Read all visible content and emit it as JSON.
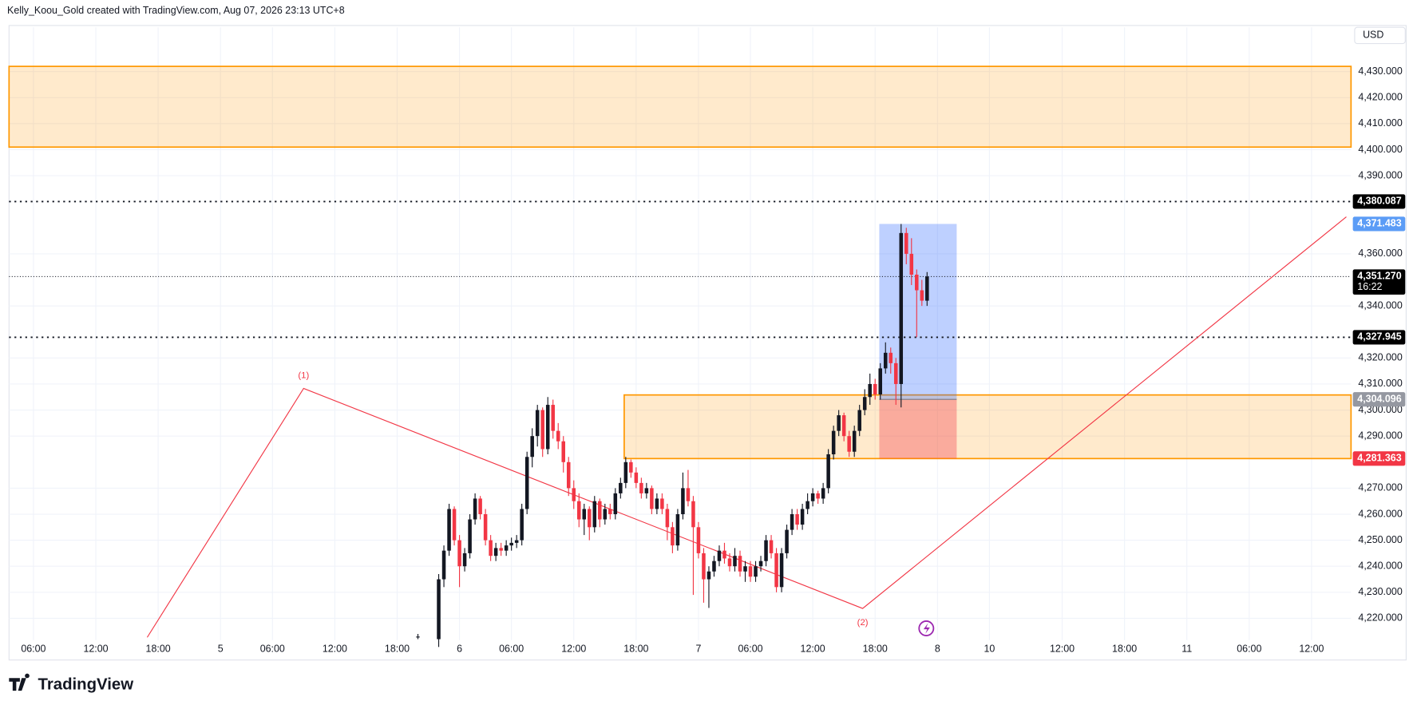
{
  "header": "Kelly_Koou_Gold created with TradingView.com, Aug 07, 2026 23:13 UTC+8",
  "brand": "TradingView",
  "chart_data": {
    "type": "candlestick",
    "currency": "USD",
    "up_color": "#131722",
    "down_color": "#f23645",
    "grid": true,
    "xlim": [
      -4.7,
      253.6
    ],
    "ylim": [
      4204,
      4447
    ],
    "xticks": [
      {
        "value": 0,
        "label": "06:00"
      },
      {
        "value": 12,
        "label": "12:00"
      },
      {
        "value": 24,
        "label": "18:00"
      },
      {
        "value": 36,
        "label": "5"
      },
      {
        "value": 46,
        "label": "06:00"
      },
      {
        "value": 58,
        "label": "12:00"
      },
      {
        "value": 70,
        "label": "18:00"
      },
      {
        "value": 82,
        "label": "6"
      },
      {
        "value": 92,
        "label": "06:00"
      },
      {
        "value": 104,
        "label": "12:00"
      },
      {
        "value": 116,
        "label": "18:00"
      },
      {
        "value": 128,
        "label": "7"
      },
      {
        "value": 138,
        "label": "06:00"
      },
      {
        "value": 150,
        "label": "12:00"
      },
      {
        "value": 162,
        "label": "18:00"
      },
      {
        "value": 174,
        "label": "8"
      },
      {
        "value": 184,
        "label": "10"
      },
      {
        "value": 198,
        "label": "12:00"
      },
      {
        "value": 210,
        "label": "18:00"
      },
      {
        "value": 222,
        "label": "11"
      },
      {
        "value": 234,
        "label": "06:00"
      },
      {
        "value": 246,
        "label": "12:00"
      }
    ],
    "yticks": [
      {
        "value": 4220,
        "label": "4,220.000"
      },
      {
        "value": 4230,
        "label": "4,230.000"
      },
      {
        "value": 4240,
        "label": "4,240.000"
      },
      {
        "value": 4250,
        "label": "4,250.000"
      },
      {
        "value": 4260,
        "label": "4,260.000"
      },
      {
        "value": 4270,
        "label": "4,270.000"
      },
      {
        "value": 4290,
        "label": "4,290.000"
      },
      {
        "value": 4300,
        "label": "4,300.000"
      },
      {
        "value": 4310,
        "label": "4,310.000"
      },
      {
        "value": 4320,
        "label": "4,320.000"
      },
      {
        "value": 4340,
        "label": "4,340.000"
      },
      {
        "value": 4360,
        "label": "4,360.000"
      },
      {
        "value": 4390,
        "label": "4,390.000"
      },
      {
        "value": 4400,
        "label": "4,400.000"
      },
      {
        "value": 4410,
        "label": "4,410.000"
      },
      {
        "value": 4420,
        "label": "4,420.000"
      },
      {
        "value": 4430,
        "label": "4,430.000"
      }
    ],
    "x": [
      74,
      78,
      79,
      80,
      81,
      82,
      83,
      84,
      85,
      86,
      87,
      88,
      89,
      90,
      91,
      92,
      93,
      94,
      95,
      96,
      97,
      98,
      99,
      100,
      101,
      102,
      103,
      104,
      105,
      106,
      107,
      108,
      109,
      110,
      111,
      112,
      113,
      114,
      115,
      116,
      117,
      118,
      119,
      120,
      121,
      122,
      123,
      124,
      125,
      126,
      127,
      128,
      129,
      130,
      131,
      132,
      133,
      134,
      135,
      136,
      137,
      138,
      139,
      140,
      141,
      142,
      143,
      144,
      145,
      146,
      147,
      148,
      149,
      150,
      151,
      152,
      153,
      154,
      155,
      156,
      157,
      158,
      159,
      160,
      161,
      162,
      163,
      164,
      165,
      166,
      167,
      168,
      169,
      170,
      171,
      172
    ],
    "open": [
      4213,
      4212,
      4235,
      4246,
      4262,
      4250,
      4240,
      4245,
      4258,
      4266,
      4260,
      4250,
      4244,
      4247,
      4246,
      4248,
      4249,
      4250,
      4262,
      4282,
      4290,
      4300,
      4285,
      4302,
      4292,
      4288,
      4280,
      4270,
      4265,
      4258,
      4262,
      4255,
      4265,
      4258,
      4262,
      4260,
      4268,
      4272,
      4280,
      4276,
      4272,
      4268,
      4270,
      4262,
      4266,
      4262,
      4255,
      4248,
      4260,
      4270,
      4265,
      4255,
      4245,
      4235,
      4238,
      4242,
      4246,
      4243,
      4240,
      4244,
      4238,
      4240,
      4236,
      4240,
      4242,
      4250,
      4245,
      4232,
      4245,
      4254,
      4260,
      4256,
      4262,
      4265,
      4268,
      4266,
      4270,
      4283,
      4292,
      4298,
      4290,
      4284,
      4292,
      4300,
      4305,
      4310,
      4306,
      4316,
      4322,
      4318,
      4310,
      4368,
      4360,
      4352,
      4346,
      4342
    ],
    "high": [
      4214,
      4237,
      4248,
      4264,
      4263,
      4252,
      4247,
      4260,
      4268,
      4267,
      4262,
      4252,
      4249,
      4249,
      4250,
      4251,
      4252,
      4264,
      4284,
      4293,
      4302,
      4301,
      4305,
      4304,
      4295,
      4290,
      4282,
      4273,
      4268,
      4264,
      4263,
      4267,
      4266,
      4264,
      4264,
      4270,
      4274,
      4282,
      4281,
      4278,
      4274,
      4272,
      4271,
      4268,
      4268,
      4264,
      4257,
      4262,
      4276,
      4277,
      4267,
      4257,
      4247,
      4240,
      4244,
      4248,
      4249,
      4245,
      4247,
      4246,
      4242,
      4242,
      4242,
      4244,
      4252,
      4252,
      4247,
      4247,
      4256,
      4262,
      4262,
      4264,
      4268,
      4270,
      4269,
      4272,
      4285,
      4294,
      4300,
      4299,
      4292,
      4294,
      4302,
      4308,
      4314,
      4312,
      4318,
      4326,
      4324,
      4320,
      4371.483,
      4370,
      4366,
      4354,
      4350,
      4353
    ],
    "low": [
      4212,
      4209,
      4232,
      4244,
      4248,
      4232,
      4238,
      4243,
      4256,
      4258,
      4248,
      4242,
      4242,
      4244,
      4244,
      4246,
      4247,
      4248,
      4260,
      4278,
      4286,
      4282,
      4283,
      4289,
      4285,
      4276,
      4267,
      4262,
      4255,
      4252,
      4250,
      4253,
      4255,
      4256,
      4258,
      4258,
      4266,
      4270,
      4274,
      4270,
      4266,
      4266,
      4260,
      4260,
      4260,
      4250,
      4245,
      4246,
      4258,
      4263,
      4229,
      4243,
      4226,
      4224,
      4236,
      4240,
      4241,
      4238,
      4238,
      4236,
      4234,
      4234,
      4234,
      4238,
      4240,
      4243,
      4230,
      4230,
      4243,
      4252,
      4254,
      4254,
      4260,
      4263,
      4264,
      4264,
      4268,
      4281,
      4290,
      4288,
      4282,
      4282,
      4290,
      4298,
      4302,
      4304,
      4304,
      4314,
      4314,
      4302,
      4301,
      4356,
      4348,
      4328,
      4340,
      4340
    ],
    "close": [
      4213,
      4235,
      4246,
      4262,
      4250,
      4240,
      4245,
      4258,
      4266,
      4260,
      4250,
      4244,
      4247,
      4246,
      4248,
      4249,
      4250,
      4262,
      4282,
      4290,
      4300,
      4285,
      4302,
      4292,
      4288,
      4280,
      4270,
      4265,
      4258,
      4262,
      4255,
      4265,
      4258,
      4262,
      4260,
      4268,
      4272,
      4280,
      4276,
      4272,
      4268,
      4270,
      4262,
      4266,
      4262,
      4255,
      4248,
      4260,
      4270,
      4265,
      4255,
      4245,
      4235,
      4238,
      4242,
      4246,
      4243,
      4240,
      4244,
      4238,
      4240,
      4236,
      4240,
      4242,
      4250,
      4245,
      4232,
      4245,
      4254,
      4260,
      4256,
      4262,
      4265,
      4268,
      4266,
      4270,
      4283,
      4292,
      4298,
      4290,
      4284,
      4292,
      4300,
      4305,
      4310,
      4306,
      4316,
      4322,
      4318,
      4310,
      4368,
      4360,
      4352,
      4346,
      4342,
      4351.27
    ],
    "zones": [
      {
        "x0": -4.7,
        "x1": 253.6,
        "low": 4401,
        "high": 4432,
        "color": "#ff9800"
      },
      {
        "x0": 113.7,
        "x1": 253.6,
        "low": 4281.363,
        "high": 4305.8,
        "color": "#ff9800"
      }
    ],
    "levels": [
      {
        "value": 4380.087,
        "label": "4,380.087"
      },
      {
        "value": 4327.945,
        "label": "4,327.945"
      }
    ],
    "last_price": {
      "value": 4351.27,
      "label": "4,351.270",
      "countdown": "16:22"
    },
    "position": {
      "x0": 162.8,
      "x1": 177.7,
      "target": {
        "value": 4371.483,
        "label": "4,371.483"
      },
      "entry": {
        "value": 4304.096,
        "label": "4,304.096"
      },
      "stop": {
        "value": 4281.363,
        "label": "4,281.363"
      }
    },
    "zigzag": {
      "color": "#f23645",
      "x": [
        21.9,
        52,
        159.6,
        252.7
      ],
      "values": [
        4212.7,
        4308.3,
        4223.8,
        4374.2
      ],
      "labels": [
        null,
        "(1)",
        "(2)",
        null
      ]
    }
  }
}
